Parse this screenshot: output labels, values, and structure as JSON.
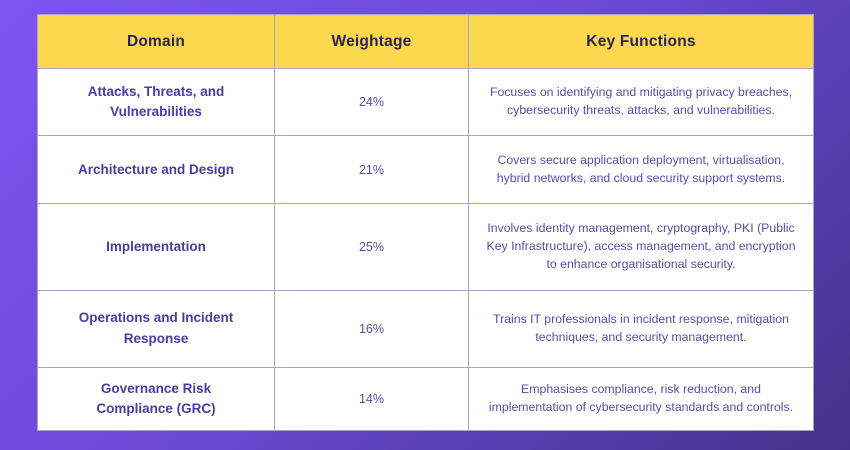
{
  "colors": {
    "background_gradient_start": "#7e54f2",
    "background_gradient_end": "#443189",
    "header_background": "#fdd84e",
    "header_text": "#2b2350",
    "domain_text": "#4d3aa3",
    "body_text": "#5b4aad",
    "cell_border": "#a9a2cc",
    "table_background": "#ffffff"
  },
  "table": {
    "headers": {
      "domain": "Domain",
      "weightage": "Weightage",
      "key_functions": "Key Functions"
    },
    "rows": [
      {
        "domain": "Attacks, Threats, and Vulnerabilities",
        "weightage": "24%",
        "key_functions": "Focuses on identifying and mitigating privacy breaches, cybersecurity threats, attacks, and vulnerabilities."
      },
      {
        "domain": "Architecture and Design",
        "weightage": "21%",
        "key_functions": "Covers secure application deployment, virtualisation, hybrid networks, and cloud security support systems."
      },
      {
        "domain": "Implementation",
        "weightage": "25%",
        "key_functions": "Involves identity management, cryptography, PKI (Public Key Infrastructure), access management, and encryption to enhance organisational security."
      },
      {
        "domain": "Operations and Incident Response",
        "weightage": "16%",
        "key_functions": "Trains IT professionals in incident response, mitigation techniques, and security management."
      },
      {
        "domain": "Governance Risk Compliance (GRC)",
        "weightage": "14%",
        "key_functions": "Emphasises compliance, risk reduction, and implementation of cybersecurity standards and controls."
      }
    ]
  }
}
